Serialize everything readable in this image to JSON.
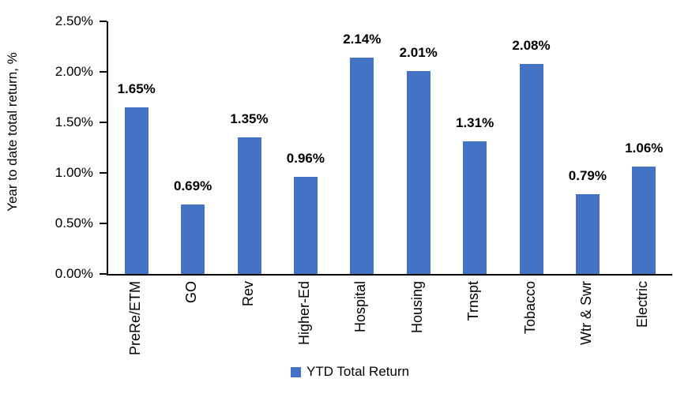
{
  "chart_data": {
    "type": "bar",
    "categories": [
      "PreRe/ETM",
      "GO",
      "Rev",
      "Higher-Ed",
      "Hospital",
      "Housing",
      "Trnspt",
      "Tobacco",
      "Wtr & Swr",
      "Electric"
    ],
    "values": [
      1.65,
      0.69,
      1.35,
      0.96,
      2.14,
      2.01,
      1.31,
      2.08,
      0.79,
      1.06
    ],
    "value_labels": [
      "1.65%",
      "0.69%",
      "1.35%",
      "0.96%",
      "2.14%",
      "2.01%",
      "1.31%",
      "2.08%",
      "0.79%",
      "1.06%"
    ],
    "ylabel": "Year to date total return, %",
    "ylim": [
      0,
      2.5
    ],
    "y_ticks": [
      {
        "value": 0.0,
        "label": "0.00%"
      },
      {
        "value": 0.5,
        "label": "0.50%"
      },
      {
        "value": 1.0,
        "label": "1.00%"
      },
      {
        "value": 1.5,
        "label": "1.50%"
      },
      {
        "value": 2.0,
        "label": "2.00%"
      },
      {
        "value": 2.5,
        "label": "2.50%"
      }
    ],
    "grid": "off",
    "legend": {
      "label": "YTD Total Return",
      "position": "bottom",
      "swatch_icon": "legend-swatch-square"
    },
    "colors": {
      "bar": "#4472C4",
      "axis": "#000000",
      "text": "#000000",
      "background": "#FFFFFF"
    }
  }
}
